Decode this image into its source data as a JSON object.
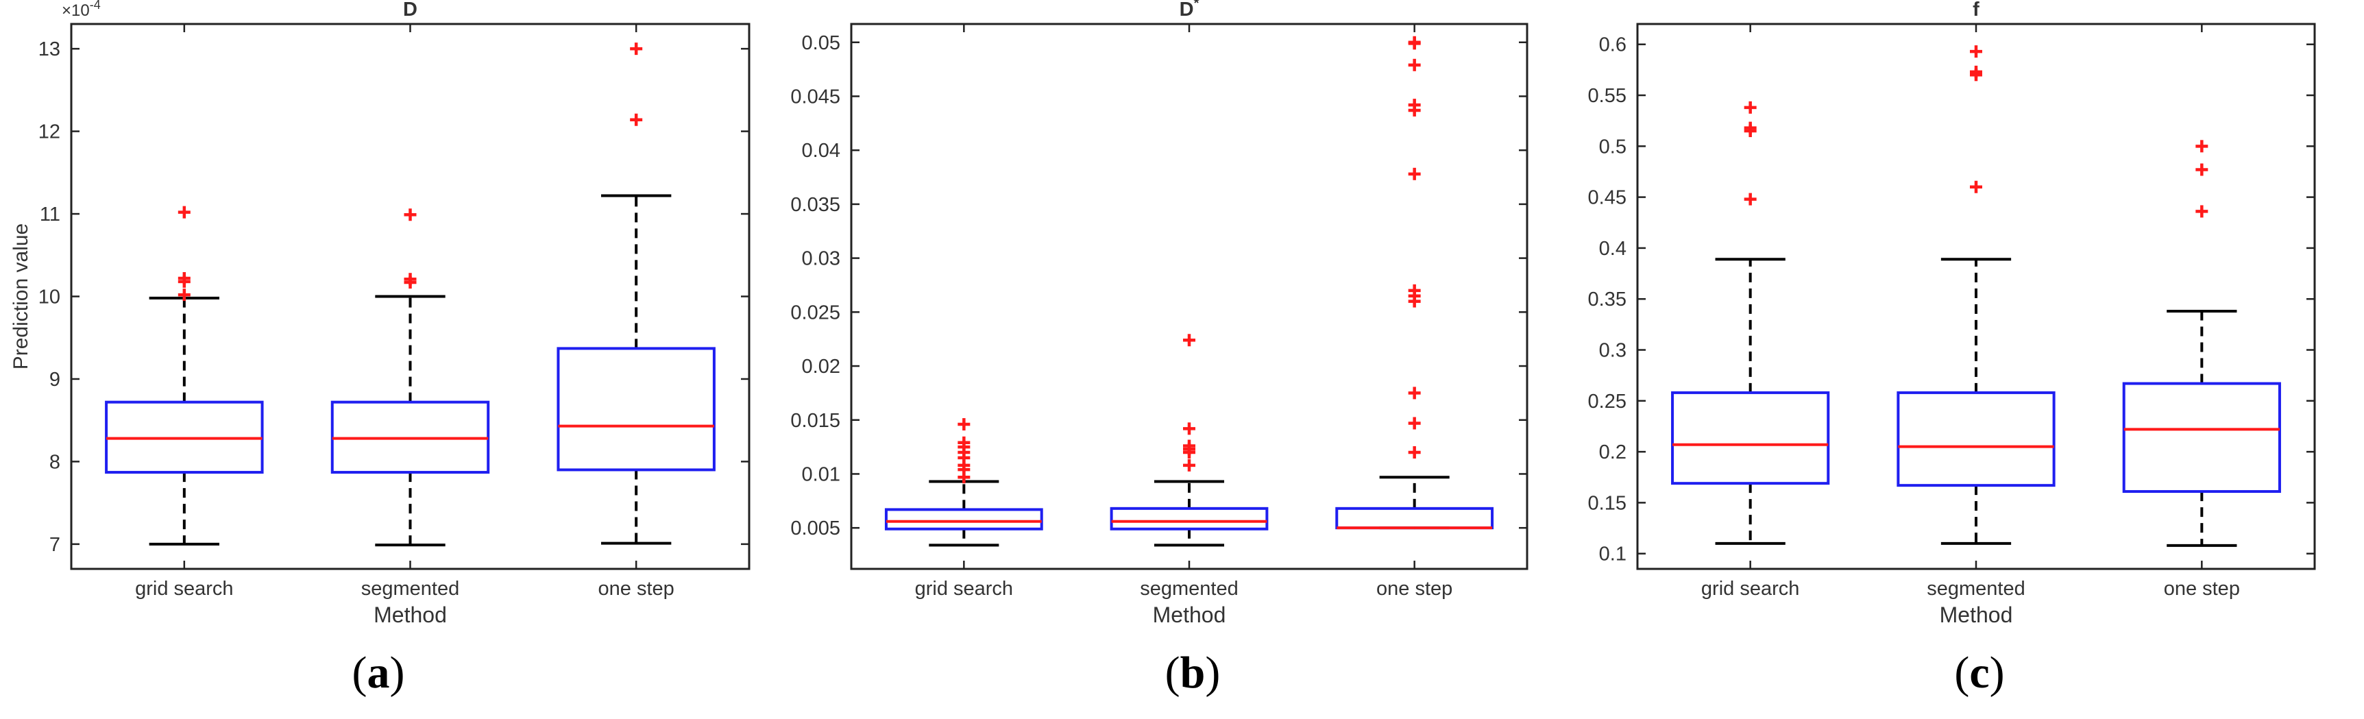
{
  "figure": {
    "shared_xlabel": "Method",
    "shared_ylabel": "Prediction value"
  },
  "chart_data": [
    {
      "id": "a",
      "type": "boxplot",
      "title": "D",
      "title_superscript": "",
      "panel_label": "a",
      "xlabel": "Method",
      "ylabel": "Prediction value",
      "exponent_label": "×10",
      "exponent_power": "-4",
      "ylim": [
        6.7,
        13.3
      ],
      "yticks": [
        7,
        8,
        9,
        10,
        11,
        12,
        13
      ],
      "yticklabels": [
        "7",
        "8",
        "9",
        "10",
        "11",
        "12",
        "13"
      ],
      "categories": [
        "grid search",
        "segmented",
        "one step"
      ],
      "boxes": [
        {
          "name": "grid search",
          "whisker_low": 7.0,
          "q1": 7.87,
          "median": 8.28,
          "q3": 8.72,
          "whisker_high": 9.98,
          "outliers": [
            10.02,
            10.18,
            10.22,
            11.02
          ]
        },
        {
          "name": "segmented",
          "whisker_low": 6.99,
          "q1": 7.87,
          "median": 8.28,
          "q3": 8.72,
          "whisker_high": 10.0,
          "outliers": [
            10.17,
            10.21,
            10.99
          ]
        },
        {
          "name": "one step",
          "whisker_low": 7.01,
          "q1": 7.9,
          "median": 8.43,
          "q3": 9.37,
          "whisker_high": 11.22,
          "outliers": [
            12.14,
            13.0
          ]
        }
      ]
    },
    {
      "id": "b",
      "type": "boxplot",
      "title": "D",
      "title_superscript": "*",
      "panel_label": "b",
      "xlabel": "Method",
      "ylabel": "",
      "exponent_label": "",
      "exponent_power": "",
      "ylim": [
        0.0012,
        0.0517
      ],
      "yticks": [
        0.005,
        0.01,
        0.015,
        0.02,
        0.025,
        0.03,
        0.035,
        0.04,
        0.045,
        0.05
      ],
      "yticklabels": [
        "0.005",
        "0.01",
        "0.015",
        "0.02",
        "0.025",
        "0.03",
        "0.035",
        "0.04",
        "0.045",
        "0.05"
      ],
      "categories": [
        "grid search",
        "segmented",
        "one step"
      ],
      "boxes": [
        {
          "name": "grid search",
          "whisker_low": 0.0034,
          "q1": 0.0049,
          "median": 0.0056,
          "q3": 0.0067,
          "whisker_high": 0.0093,
          "outliers": [
            0.0097,
            0.0104,
            0.0108,
            0.0115,
            0.012,
            0.0125,
            0.0129,
            0.0146
          ]
        },
        {
          "name": "segmented",
          "whisker_low": 0.0034,
          "q1": 0.0049,
          "median": 0.0056,
          "q3": 0.0068,
          "whisker_high": 0.0093,
          "outliers": [
            0.0108,
            0.012,
            0.0123,
            0.0126,
            0.0142,
            0.0224
          ]
        },
        {
          "name": "one step",
          "whisker_low": 0.005,
          "q1": 0.005,
          "median": 0.005,
          "q3": 0.0068,
          "whisker_high": 0.0097,
          "outliers": [
            0.012,
            0.0147,
            0.0175,
            0.026,
            0.0265,
            0.027,
            0.0378,
            0.0437,
            0.0442,
            0.0479,
            0.0499,
            0.05
          ]
        }
      ]
    },
    {
      "id": "c",
      "type": "boxplot",
      "title": "f",
      "title_superscript": "",
      "panel_label": "c",
      "xlabel": "Method",
      "ylabel": "",
      "exponent_label": "",
      "exponent_power": "",
      "ylim": [
        0.085,
        0.62
      ],
      "yticks": [
        0.1,
        0.15,
        0.2,
        0.25,
        0.3,
        0.35,
        0.4,
        0.45,
        0.5,
        0.55,
        0.6
      ],
      "yticklabels": [
        "0.1",
        "0.15",
        "0.2",
        "0.25",
        "0.3",
        "0.35",
        "0.4",
        "0.45",
        "0.5",
        "0.55",
        "0.6"
      ],
      "categories": [
        "grid search",
        "segmented",
        "one step"
      ],
      "boxes": [
        {
          "name": "grid search",
          "whisker_low": 0.11,
          "q1": 0.169,
          "median": 0.207,
          "q3": 0.258,
          "whisker_high": 0.389,
          "outliers": [
            0.448,
            0.515,
            0.518,
            0.538
          ]
        },
        {
          "name": "segmented",
          "whisker_low": 0.11,
          "q1": 0.167,
          "median": 0.205,
          "q3": 0.258,
          "whisker_high": 0.389,
          "outliers": [
            0.46,
            0.57,
            0.573,
            0.593
          ]
        },
        {
          "name": "one step",
          "whisker_low": 0.108,
          "q1": 0.161,
          "median": 0.222,
          "q3": 0.267,
          "whisker_high": 0.338,
          "outliers": [
            0.436,
            0.477,
            0.5
          ]
        }
      ]
    }
  ],
  "colors": {
    "box": "#1f1ff0",
    "median": "#ff1a1a",
    "outlier": "#ff1a1a",
    "whisker": "#000000",
    "axis": "#222222",
    "text": "#333333"
  }
}
